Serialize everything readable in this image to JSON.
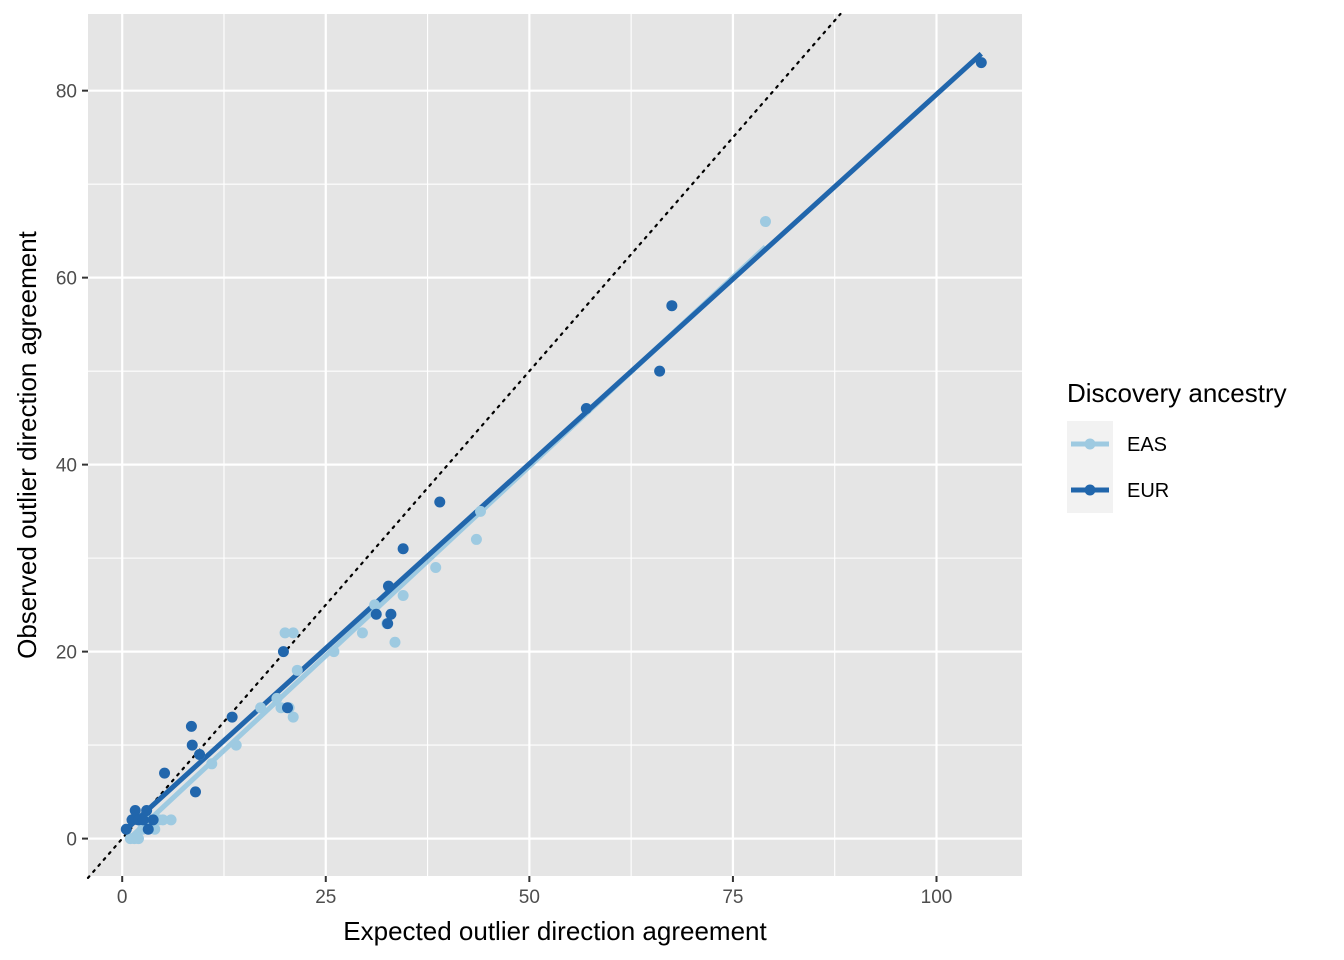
{
  "chart_data": {
    "type": "scatter",
    "title": "",
    "xlabel": "Expected outlier direction agreement",
    "ylabel": "Observed outlier direction agreement",
    "xlim": [
      -4.2,
      110.5
    ],
    "ylim": [
      -4,
      88.2
    ],
    "x_ticks": [
      0,
      25,
      50,
      75,
      100
    ],
    "y_ticks": [
      0,
      20,
      40,
      60,
      80
    ],
    "x_tick_labels": [
      "0",
      "25",
      "50",
      "75",
      "100"
    ],
    "y_tick_labels": [
      "0",
      "20",
      "40",
      "60",
      "80"
    ],
    "grid": true,
    "reference_line": {
      "slope": 1,
      "intercept": 0,
      "style": "dotted"
    },
    "legend": {
      "title": "Discovery ancestry",
      "position": "right",
      "entries": [
        "EAS",
        "EUR"
      ]
    },
    "series": [
      {
        "name": "EAS",
        "color": "#9ecae1",
        "fit": {
          "x_range": [
            0.5,
            79
          ],
          "intercept": -0.7,
          "slope": 0.81
        },
        "points": [
          [
            1.0,
            0
          ],
          [
            1.5,
            0
          ],
          [
            2.0,
            0
          ],
          [
            2.5,
            1
          ],
          [
            3.0,
            2
          ],
          [
            4.0,
            1
          ],
          [
            4.5,
            2
          ],
          [
            5.0,
            2
          ],
          [
            6.0,
            2
          ],
          [
            9.5,
            9
          ],
          [
            11.0,
            8
          ],
          [
            14.0,
            10
          ],
          [
            17.0,
            14
          ],
          [
            19.0,
            15
          ],
          [
            19.5,
            14
          ],
          [
            20.0,
            22
          ],
          [
            20.5,
            14
          ],
          [
            21.0,
            22
          ],
          [
            21.0,
            13
          ],
          [
            21.5,
            18
          ],
          [
            26.0,
            20
          ],
          [
            29.5,
            22
          ],
          [
            31.0,
            25
          ],
          [
            32.5,
            23
          ],
          [
            33.5,
            21
          ],
          [
            34.5,
            26
          ],
          [
            38.5,
            29
          ],
          [
            43.5,
            32
          ],
          [
            44.0,
            35
          ],
          [
            79.0,
            66
          ]
        ]
      },
      {
        "name": "EUR",
        "color": "#2166ac",
        "fit": {
          "x_range": [
            0.5,
            105.5
          ],
          "intercept": 0.6,
          "slope": 0.79
        },
        "points": [
          [
            0.5,
            1
          ],
          [
            1.2,
            2
          ],
          [
            1.6,
            3
          ],
          [
            2.0,
            2
          ],
          [
            2.6,
            2
          ],
          [
            3.0,
            3
          ],
          [
            3.2,
            1
          ],
          [
            3.8,
            2
          ],
          [
            5.2,
            7
          ],
          [
            8.5,
            12
          ],
          [
            8.6,
            10
          ],
          [
            9.0,
            5
          ],
          [
            9.5,
            9
          ],
          [
            13.5,
            13
          ],
          [
            19.8,
            20
          ],
          [
            20.3,
            14
          ],
          [
            31.2,
            24
          ],
          [
            32.6,
            23
          ],
          [
            32.7,
            27
          ],
          [
            33.0,
            24
          ],
          [
            34.5,
            31
          ],
          [
            39.0,
            36
          ],
          [
            57.0,
            46
          ],
          [
            66.0,
            50
          ],
          [
            67.5,
            57
          ],
          [
            105.5,
            83
          ]
        ]
      }
    ]
  }
}
